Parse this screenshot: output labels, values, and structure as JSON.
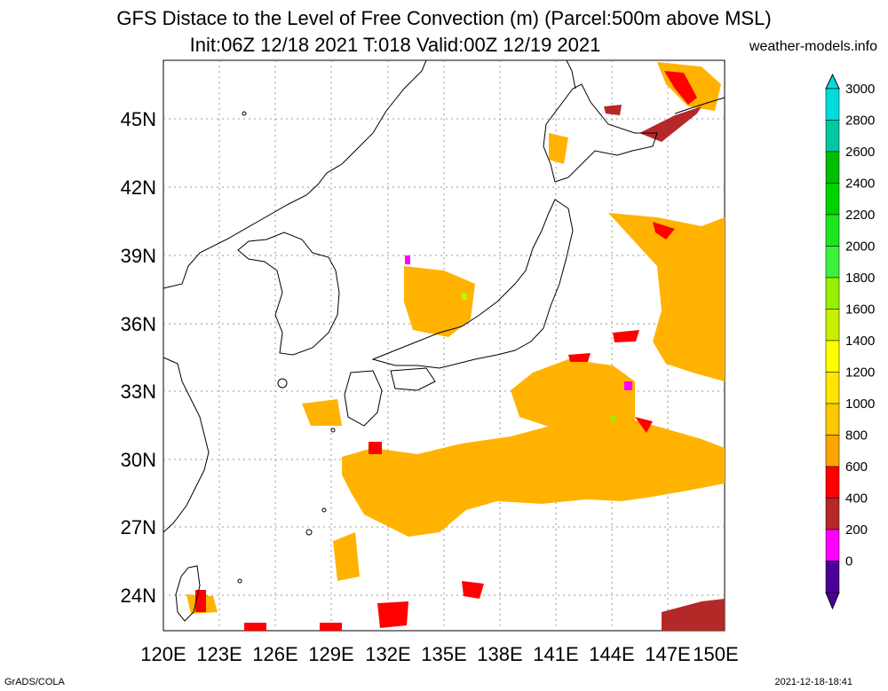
{
  "title_line1": "GFS Distace to the Level of Free Convection (m) (Parcel:500m above MSL)",
  "title_line2": "Init:06Z 12/18 2021 T:018 Valid:00Z 12/19 2021",
  "source": "weather-models.info",
  "footer_left": "GrADS/COLA",
  "footer_right": "2021-12-18-18:41",
  "lat_labels": [
    "45N",
    "42N",
    "39N",
    "36N",
    "33N",
    "30N",
    "27N",
    "24N"
  ],
  "lon_labels": [
    "120E",
    "123E",
    "126E",
    "129E",
    "132E",
    "135E",
    "138E",
    "141E",
    "144E",
    "147E",
    "150E"
  ],
  "colorbar": {
    "labels": [
      "3000",
      "2800",
      "2600",
      "2400",
      "2200",
      "2000",
      "1800",
      "1600",
      "1400",
      "1200",
      "1000",
      "800",
      "600",
      "400",
      "200",
      "0"
    ],
    "colors": [
      "#00dcdc",
      "#00c8a0",
      "#00be00",
      "#00d200",
      "#1ee61e",
      "#3cf03c",
      "#96f000",
      "#c8f000",
      "#ffff00",
      "#ffe600",
      "#ffc800",
      "#ffa500",
      "#ff0000",
      "#b42828",
      "#ff00ff",
      "#4b0096"
    ]
  }
}
